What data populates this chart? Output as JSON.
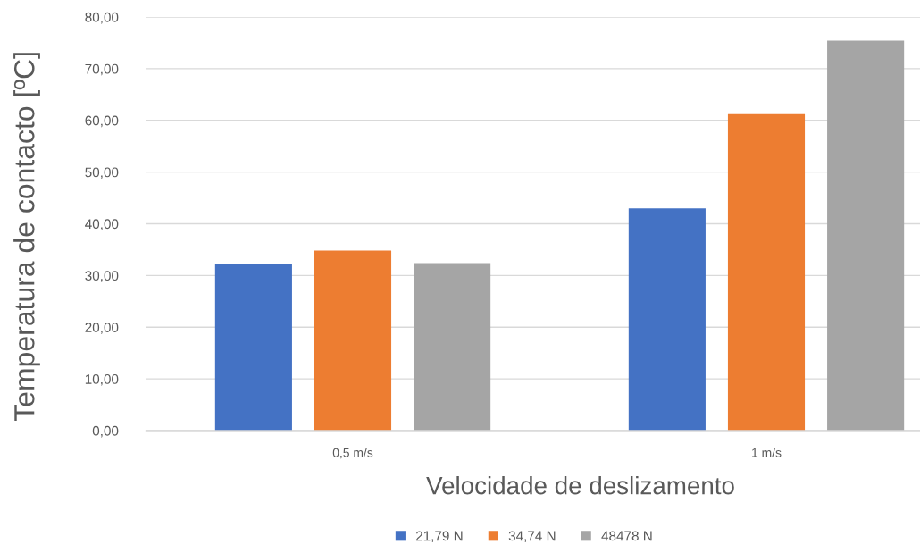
{
  "chart_data": {
    "type": "bar",
    "categories": [
      "0,5 m/s",
      "1 m/s"
    ],
    "series": [
      {
        "name": "21,79 N",
        "color": "#4472c4",
        "values": [
          32.2,
          43.0
        ]
      },
      {
        "name": "34,74 N",
        "color": "#ed7d31",
        "values": [
          34.8,
          61.2
        ]
      },
      {
        "name": "48478 N",
        "color": "#a5a5a5",
        "values": [
          32.4,
          75.4
        ]
      }
    ],
    "xlabel": "Velocidade de deslizamento",
    "ylabel": "Temperatura de contacto [ºC]",
    "ylim": [
      0,
      80
    ],
    "yticks": [
      {
        "value": 0,
        "label": "0,00"
      },
      {
        "value": 10,
        "label": "10,00"
      },
      {
        "value": 20,
        "label": "20,00"
      },
      {
        "value": 30,
        "label": "30,00"
      },
      {
        "value": 40,
        "label": "40,00"
      },
      {
        "value": 50,
        "label": "50,00"
      },
      {
        "value": 60,
        "label": "60,00"
      },
      {
        "value": 70,
        "label": "70,00"
      },
      {
        "value": 80,
        "label": "80,00"
      }
    ],
    "grid": "y",
    "legend": "bottom"
  }
}
